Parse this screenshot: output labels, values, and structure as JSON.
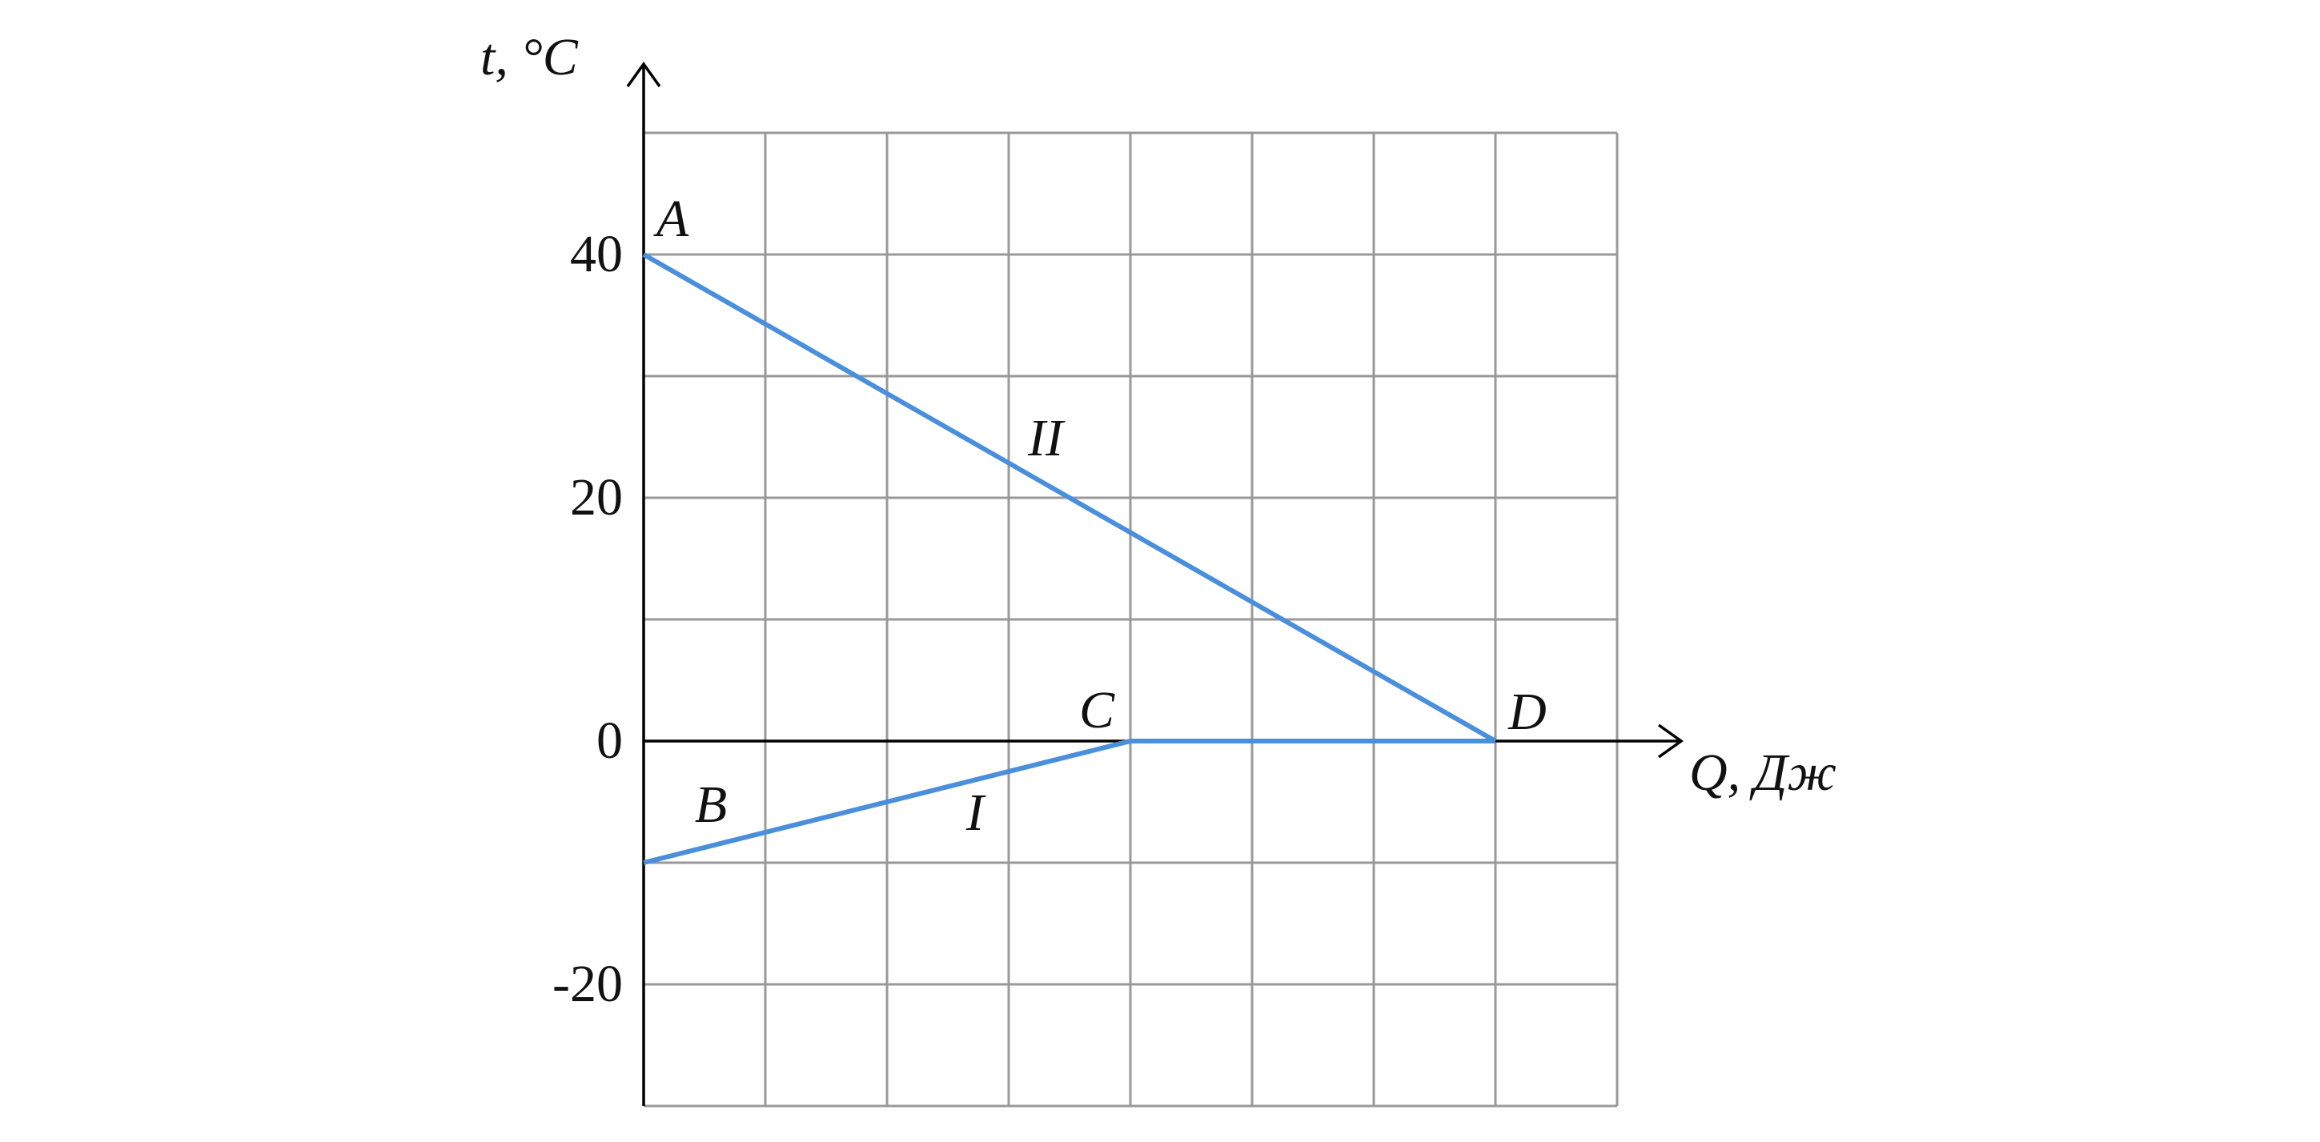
{
  "chart_data": {
    "type": "line",
    "y_label": "t, °C",
    "x_label": "Q, Дж",
    "xlim": [
      0,
      8
    ],
    "ylim": [
      -30,
      50
    ],
    "yticks": [
      -20,
      0,
      20,
      40
    ],
    "xgrid": [
      0,
      1,
      2,
      3,
      4,
      5,
      6,
      7,
      8
    ],
    "ygrid": [
      -30,
      -20,
      -10,
      0,
      10,
      20,
      30,
      40,
      50
    ],
    "grid": true,
    "series": [
      {
        "name": "II",
        "color": "#4a8fdc",
        "x": [
          0,
          7
        ],
        "values": [
          40,
          0
        ],
        "point_labels": [
          "A",
          "D"
        ]
      },
      {
        "name": "I",
        "color": "#4a8fdc",
        "x": [
          0,
          4,
          7
        ],
        "values": [
          -10,
          0,
          0
        ],
        "point_labels": [
          "B",
          "C",
          null
        ]
      }
    ]
  }
}
